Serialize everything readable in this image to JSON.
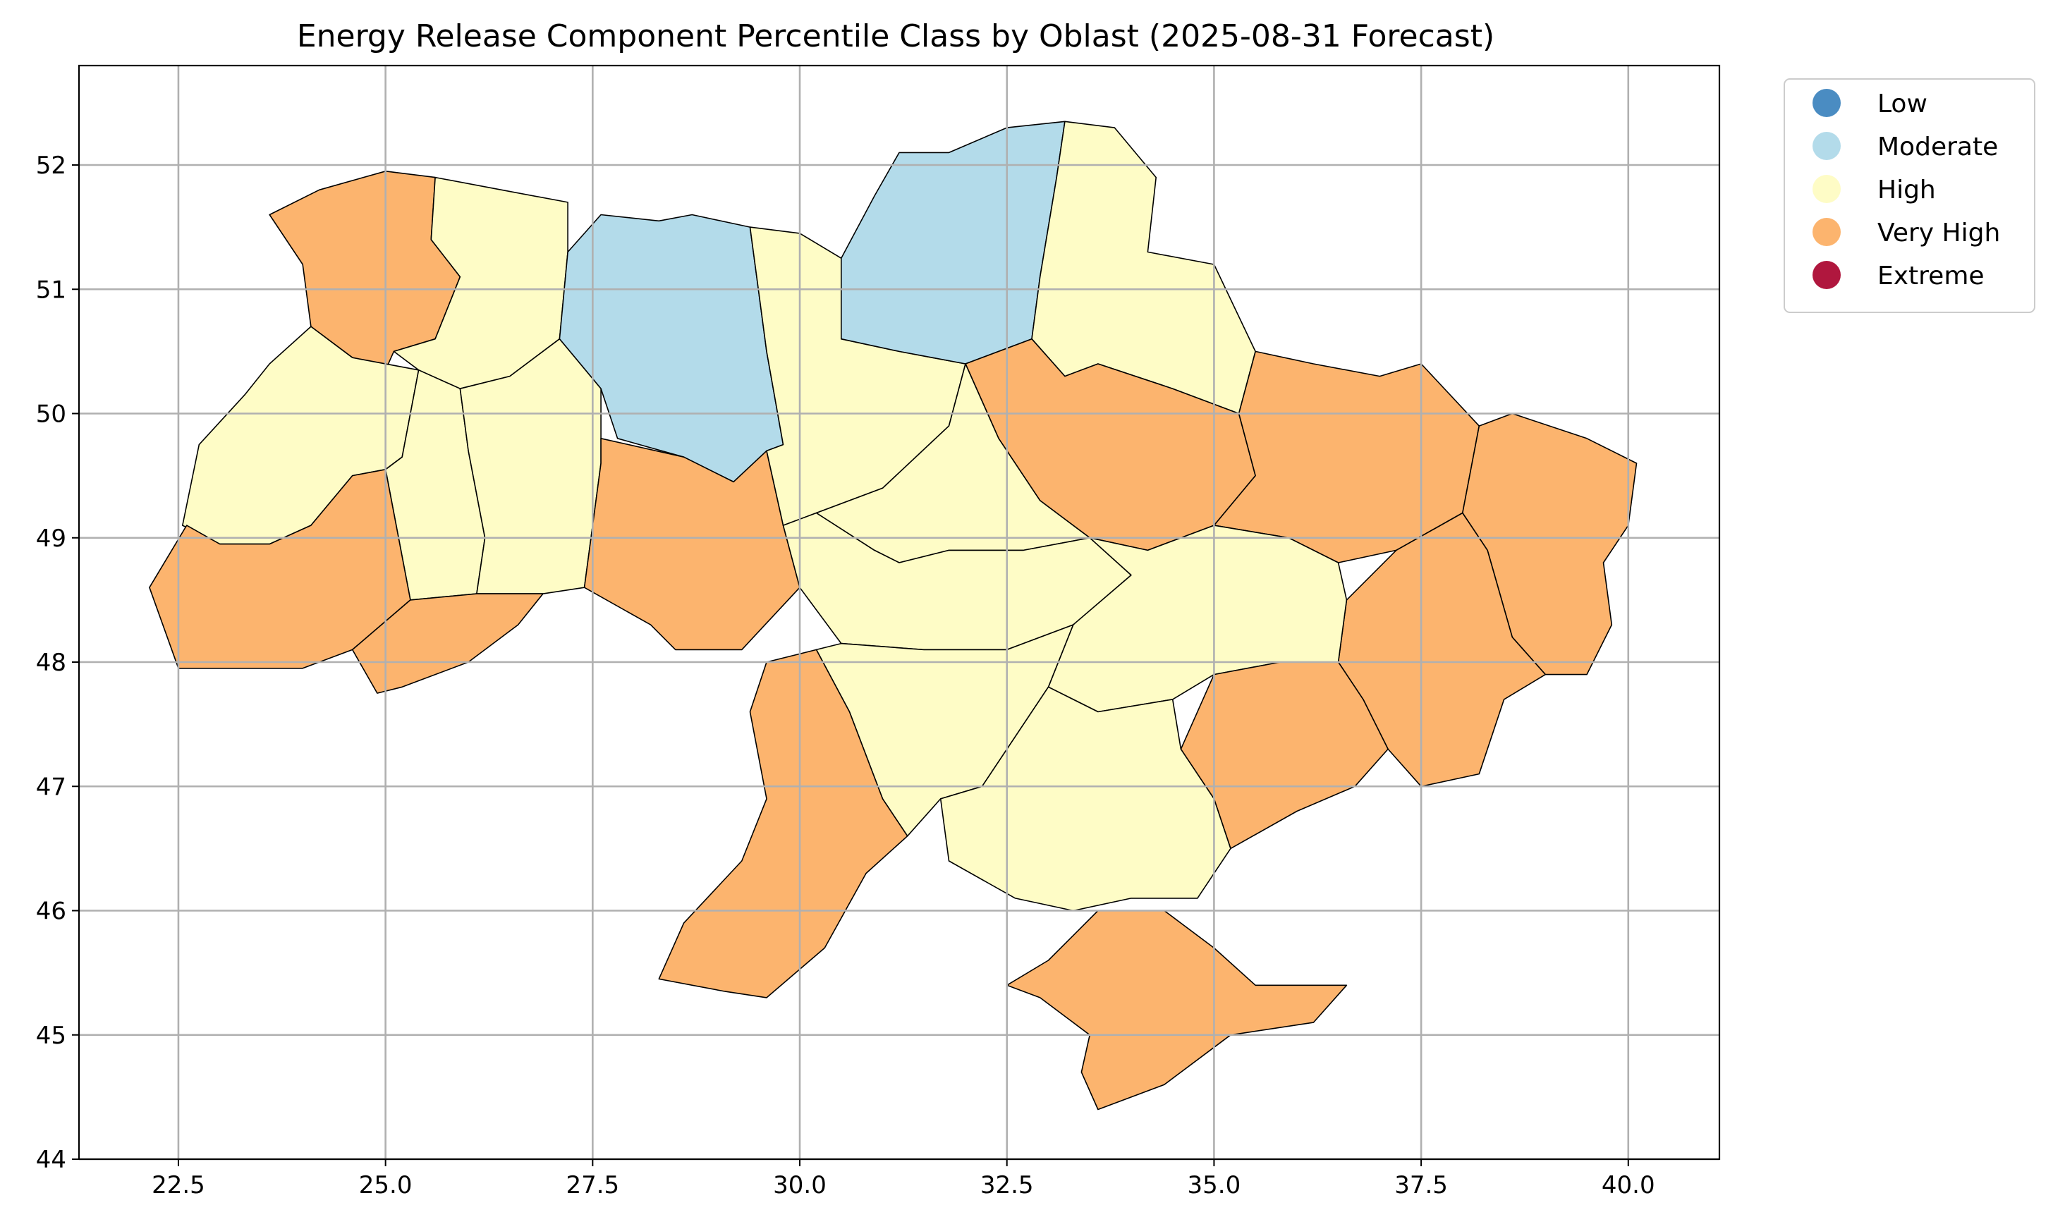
{
  "title": "Energy Release Component Percentile Class by Oblast (2025-08-31 Forecast)",
  "map": {
    "xlim": [
      21.3,
      41.1
    ],
    "ylim": [
      44.0,
      52.8
    ],
    "x_ticks": [
      {
        "value": 22.5,
        "label": "22.5"
      },
      {
        "value": 25.0,
        "label": "25.0"
      },
      {
        "value": 27.5,
        "label": "27.5"
      },
      {
        "value": 30.0,
        "label": "30.0"
      },
      {
        "value": 32.5,
        "label": "32.5"
      },
      {
        "value": 35.0,
        "label": "35.0"
      },
      {
        "value": 37.5,
        "label": "37.5"
      },
      {
        "value": 40.0,
        "label": "40.0"
      }
    ],
    "y_ticks": [
      {
        "value": 44,
        "label": "44"
      },
      {
        "value": 45,
        "label": "45"
      },
      {
        "value": 46,
        "label": "46"
      },
      {
        "value": 47,
        "label": "47"
      },
      {
        "value": 48,
        "label": "48"
      },
      {
        "value": 49,
        "label": "49"
      },
      {
        "value": 50,
        "label": "50"
      },
      {
        "value": 51,
        "label": "51"
      },
      {
        "value": 52,
        "label": "52"
      }
    ],
    "grid": true,
    "legend_position": "outside-right-top"
  },
  "legend": {
    "items": [
      {
        "label": "Low",
        "color": "#4a8cc2"
      },
      {
        "label": "Moderate",
        "color": "#b3dbea"
      },
      {
        "label": "High",
        "color": "#fefcc6"
      },
      {
        "label": "Very High",
        "color": "#fcb46e"
      },
      {
        "label": "Extreme",
        "color": "#b0173e"
      }
    ]
  },
  "class_colors": {
    "Low": "#4a8cc2",
    "Moderate": "#b3dbea",
    "High": "#fefcc6",
    "Very High": "#fcb46e",
    "Extreme": "#b0173e"
  },
  "oblasts": [
    {
      "class": "Very High",
      "lonlat": [
        [
          23.6,
          51.6
        ],
        [
          24.2,
          51.8
        ],
        [
          25.0,
          51.95
        ],
        [
          25.6,
          51.9
        ],
        [
          25.55,
          51.4
        ],
        [
          25.9,
          51.1
        ],
        [
          25.6,
          50.6
        ],
        [
          25.1,
          50.5
        ],
        [
          25.0,
          50.35
        ],
        [
          24.6,
          50.45
        ],
        [
          24.1,
          50.7
        ],
        [
          24.0,
          51.2
        ],
        [
          23.6,
          51.6
        ]
      ]
    },
    {
      "class": "High",
      "lonlat": [
        [
          25.6,
          51.9
        ],
        [
          26.4,
          51.8
        ],
        [
          27.2,
          51.7
        ],
        [
          27.2,
          51.3
        ],
        [
          27.1,
          50.6
        ],
        [
          26.5,
          50.3
        ],
        [
          25.9,
          50.2
        ],
        [
          25.4,
          50.35
        ],
        [
          25.1,
          50.5
        ],
        [
          25.6,
          50.6
        ],
        [
          25.9,
          51.1
        ],
        [
          25.55,
          51.4
        ],
        [
          25.6,
          51.9
        ]
      ]
    },
    {
      "class": "Moderate",
      "lonlat": [
        [
          27.2,
          51.3
        ],
        [
          27.6,
          51.6
        ],
        [
          28.3,
          51.55
        ],
        [
          28.7,
          51.6
        ],
        [
          29.4,
          51.5
        ],
        [
          29.5,
          51.0
        ],
        [
          29.6,
          50.5
        ],
        [
          29.8,
          49.75
        ],
        [
          29.6,
          49.7
        ],
        [
          29.2,
          49.45
        ],
        [
          28.6,
          49.65
        ],
        [
          27.8,
          49.8
        ],
        [
          27.6,
          50.2
        ],
        [
          27.1,
          50.6
        ],
        [
          27.2,
          51.3
        ]
      ]
    },
    {
      "class": "High",
      "lonlat": [
        [
          23.6,
          50.4
        ],
        [
          23.3,
          50.15
        ],
        [
          22.75,
          49.75
        ],
        [
          22.55,
          49.1
        ],
        [
          23.0,
          48.95
        ],
        [
          23.6,
          48.95
        ],
        [
          24.1,
          49.1
        ],
        [
          24.6,
          49.5
        ],
        [
          25.0,
          49.55
        ],
        [
          25.2,
          49.65
        ],
        [
          25.4,
          50.35
        ],
        [
          24.6,
          50.45
        ],
        [
          24.1,
          50.7
        ],
        [
          23.6,
          50.4
        ]
      ]
    },
    {
      "class": "High",
      "lonlat": [
        [
          25.4,
          50.35
        ],
        [
          25.9,
          50.2
        ],
        [
          26.0,
          49.7
        ],
        [
          26.2,
          49.0
        ],
        [
          26.1,
          48.55
        ],
        [
          25.3,
          48.5
        ],
        [
          25.0,
          49.55
        ],
        [
          25.2,
          49.65
        ],
        [
          25.4,
          50.35
        ]
      ]
    },
    {
      "class": "High",
      "lonlat": [
        [
          25.9,
          50.2
        ],
        [
          26.5,
          50.3
        ],
        [
          27.1,
          50.6
        ],
        [
          27.6,
          50.2
        ],
        [
          27.6,
          49.6
        ],
        [
          27.4,
          48.6
        ],
        [
          26.9,
          48.55
        ],
        [
          26.1,
          48.55
        ],
        [
          26.2,
          49.0
        ],
        [
          26.0,
          49.7
        ],
        [
          25.9,
          50.2
        ]
      ]
    },
    {
      "class": "Very High",
      "lonlat": [
        [
          22.15,
          48.6
        ],
        [
          22.6,
          49.1
        ],
        [
          23.0,
          48.95
        ],
        [
          23.6,
          48.95
        ],
        [
          24.1,
          49.1
        ],
        [
          24.6,
          49.5
        ],
        [
          25.0,
          49.55
        ],
        [
          25.3,
          48.5
        ],
        [
          24.6,
          48.1
        ],
        [
          24.0,
          47.95
        ],
        [
          23.2,
          47.95
        ],
        [
          22.5,
          47.95
        ],
        [
          22.15,
          48.6
        ]
      ]
    },
    {
      "class": "Very High",
      "lonlat": [
        [
          24.6,
          48.1
        ],
        [
          25.3,
          48.5
        ],
        [
          26.1,
          48.55
        ],
        [
          26.9,
          48.55
        ],
        [
          26.6,
          48.3
        ],
        [
          26.0,
          48.0
        ],
        [
          25.2,
          47.8
        ],
        [
          24.9,
          47.75
        ],
        [
          24.6,
          48.1
        ]
      ]
    },
    {
      "class": "Very High",
      "lonlat": [
        [
          27.6,
          49.8
        ],
        [
          28.6,
          49.65
        ],
        [
          29.2,
          49.45
        ],
        [
          29.6,
          49.7
        ],
        [
          29.8,
          49.1
        ],
        [
          30.0,
          48.6
        ],
        [
          29.3,
          48.1
        ],
        [
          28.5,
          48.1
        ],
        [
          28.2,
          48.3
        ],
        [
          27.4,
          48.6
        ],
        [
          27.6,
          49.6
        ],
        [
          27.6,
          49.8
        ]
      ]
    },
    {
      "class": "High",
      "lonlat": [
        [
          29.4,
          51.5
        ],
        [
          30.0,
          51.45
        ],
        [
          30.5,
          51.25
        ],
        [
          30.5,
          50.6
        ],
        [
          31.2,
          50.5
        ],
        [
          31.6,
          50.45
        ],
        [
          32.0,
          50.4
        ],
        [
          31.8,
          49.9
        ],
        [
          31.0,
          49.4
        ],
        [
          30.2,
          49.2
        ],
        [
          29.8,
          49.1
        ],
        [
          29.6,
          49.7
        ],
        [
          29.8,
          49.75
        ],
        [
          29.6,
          50.5
        ],
        [
          29.5,
          51.0
        ],
        [
          29.4,
          51.5
        ]
      ]
    },
    {
      "class": "Moderate",
      "lonlat": [
        [
          30.5,
          51.25
        ],
        [
          30.9,
          51.75
        ],
        [
          31.2,
          52.1
        ],
        [
          31.8,
          52.1
        ],
        [
          32.5,
          52.3
        ],
        [
          33.2,
          52.35
        ],
        [
          33.1,
          51.9
        ],
        [
          32.9,
          51.1
        ],
        [
          32.8,
          50.6
        ],
        [
          32.0,
          50.4
        ],
        [
          31.6,
          50.45
        ],
        [
          31.2,
          50.5
        ],
        [
          30.5,
          50.6
        ],
        [
          30.5,
          51.25
        ]
      ]
    },
    {
      "class": "High",
      "lonlat": [
        [
          33.2,
          52.35
        ],
        [
          33.8,
          52.3
        ],
        [
          34.3,
          51.9
        ],
        [
          34.2,
          51.3
        ],
        [
          35.0,
          51.2
        ],
        [
          35.5,
          50.5
        ],
        [
          35.3,
          50.0
        ],
        [
          34.5,
          50.2
        ],
        [
          33.6,
          50.4
        ],
        [
          33.2,
          50.3
        ],
        [
          32.8,
          50.6
        ],
        [
          32.9,
          51.1
        ],
        [
          33.1,
          51.9
        ],
        [
          33.2,
          52.35
        ]
      ]
    },
    {
      "class": "Very High",
      "lonlat": [
        [
          32.0,
          50.4
        ],
        [
          32.8,
          50.6
        ],
        [
          33.2,
          50.3
        ],
        [
          33.6,
          50.4
        ],
        [
          34.5,
          50.2
        ],
        [
          35.3,
          50.0
        ],
        [
          35.5,
          49.5
        ],
        [
          35.0,
          49.1
        ],
        [
          34.2,
          48.9
        ],
        [
          33.5,
          49.0
        ],
        [
          32.9,
          49.3
        ],
        [
          32.4,
          49.8
        ],
        [
          32.0,
          50.4
        ]
      ]
    },
    {
      "class": "Very High",
      "lonlat": [
        [
          35.3,
          50.0
        ],
        [
          35.5,
          50.5
        ],
        [
          36.2,
          50.4
        ],
        [
          37.0,
          50.3
        ],
        [
          37.5,
          50.4
        ],
        [
          38.2,
          49.9
        ],
        [
          38.0,
          49.2
        ],
        [
          37.2,
          48.9
        ],
        [
          36.5,
          48.8
        ],
        [
          35.9,
          49.0
        ],
        [
          35.0,
          49.1
        ],
        [
          35.5,
          49.5
        ],
        [
          35.3,
          50.0
        ]
      ]
    },
    {
      "class": "Very High",
      "lonlat": [
        [
          38.2,
          49.9
        ],
        [
          38.6,
          50.0
        ],
        [
          39.5,
          49.8
        ],
        [
          40.1,
          49.6
        ],
        [
          40.0,
          49.1
        ],
        [
          39.7,
          48.8
        ],
        [
          39.8,
          48.3
        ],
        [
          39.5,
          47.9
        ],
        [
          39.0,
          47.9
        ],
        [
          38.6,
          48.2
        ],
        [
          38.3,
          48.9
        ],
        [
          38.0,
          49.2
        ],
        [
          38.2,
          49.9
        ]
      ]
    },
    {
      "class": "Very High",
      "lonlat": [
        [
          37.2,
          48.9
        ],
        [
          38.0,
          49.2
        ],
        [
          38.3,
          48.9
        ],
        [
          38.6,
          48.2
        ],
        [
          39.0,
          47.9
        ],
        [
          38.5,
          47.7
        ],
        [
          38.2,
          47.1
        ],
        [
          37.5,
          47.0
        ],
        [
          37.1,
          47.3
        ],
        [
          36.8,
          47.7
        ],
        [
          36.5,
          48.0
        ],
        [
          36.6,
          48.5
        ],
        [
          37.2,
          48.9
        ]
      ]
    },
    {
      "class": "High",
      "lonlat": [
        [
          31.0,
          49.4
        ],
        [
          31.8,
          49.9
        ],
        [
          32.0,
          50.4
        ],
        [
          32.4,
          49.8
        ],
        [
          32.9,
          49.3
        ],
        [
          33.5,
          49.0
        ],
        [
          32.7,
          48.9
        ],
        [
          31.8,
          48.9
        ],
        [
          31.2,
          48.8
        ],
        [
          30.9,
          48.9
        ],
        [
          30.2,
          49.2
        ],
        [
          31.0,
          49.4
        ]
      ]
    },
    {
      "class": "High",
      "lonlat": [
        [
          29.8,
          49.1
        ],
        [
          30.2,
          49.2
        ],
        [
          30.9,
          48.9
        ],
        [
          31.2,
          48.8
        ],
        [
          31.8,
          48.9
        ],
        [
          32.7,
          48.9
        ],
        [
          33.5,
          49.0
        ],
        [
          34.0,
          48.7
        ],
        [
          33.3,
          48.3
        ],
        [
          32.5,
          48.1
        ],
        [
          31.5,
          48.1
        ],
        [
          30.5,
          48.15
        ],
        [
          30.0,
          48.6
        ],
        [
          29.8,
          49.1
        ]
      ]
    },
    {
      "class": "High",
      "lonlat": [
        [
          33.5,
          49.0
        ],
        [
          34.2,
          48.9
        ],
        [
          35.0,
          49.1
        ],
        [
          35.9,
          49.0
        ],
        [
          36.5,
          48.8
        ],
        [
          36.6,
          48.5
        ],
        [
          36.5,
          48.0
        ],
        [
          35.8,
          48.0
        ],
        [
          35.0,
          47.9
        ],
        [
          34.5,
          47.7
        ],
        [
          33.6,
          47.6
        ],
        [
          33.0,
          47.8
        ],
        [
          33.3,
          48.3
        ],
        [
          34.0,
          48.7
        ],
        [
          33.5,
          49.0
        ]
      ]
    },
    {
      "class": "Very High",
      "lonlat": [
        [
          35.0,
          47.9
        ],
        [
          35.8,
          48.0
        ],
        [
          36.5,
          48.0
        ],
        [
          36.8,
          47.7
        ],
        [
          37.1,
          47.3
        ],
        [
          36.7,
          47.0
        ],
        [
          36.0,
          46.8
        ],
        [
          35.2,
          46.5
        ],
        [
          35.0,
          46.9
        ],
        [
          34.6,
          47.3
        ],
        [
          35.0,
          47.9
        ]
      ]
    },
    {
      "class": "High",
      "lonlat": [
        [
          30.2,
          48.1
        ],
        [
          30.5,
          48.15
        ],
        [
          31.5,
          48.1
        ],
        [
          32.5,
          48.1
        ],
        [
          33.3,
          48.3
        ],
        [
          33.0,
          47.8
        ],
        [
          32.6,
          47.4
        ],
        [
          32.2,
          47.0
        ],
        [
          31.7,
          46.9
        ],
        [
          31.3,
          46.6
        ],
        [
          31.0,
          46.9
        ],
        [
          30.6,
          47.6
        ],
        [
          30.2,
          48.1
        ]
      ]
    },
    {
      "class": "High",
      "lonlat": [
        [
          32.2,
          47.0
        ],
        [
          32.6,
          47.4
        ],
        [
          33.0,
          47.8
        ],
        [
          33.6,
          47.6
        ],
        [
          34.5,
          47.7
        ],
        [
          34.6,
          47.3
        ],
        [
          35.0,
          46.9
        ],
        [
          35.2,
          46.5
        ],
        [
          34.8,
          46.1
        ],
        [
          34.0,
          46.1
        ],
        [
          33.3,
          46.0
        ],
        [
          32.6,
          46.1
        ],
        [
          31.8,
          46.4
        ],
        [
          31.7,
          46.9
        ],
        [
          32.2,
          47.0
        ]
      ]
    },
    {
      "class": "Very High",
      "lonlat": [
        [
          29.6,
          48.0
        ],
        [
          30.2,
          48.1
        ],
        [
          30.6,
          47.6
        ],
        [
          31.0,
          46.9
        ],
        [
          31.3,
          46.6
        ],
        [
          30.8,
          46.3
        ],
        [
          30.3,
          45.7
        ],
        [
          29.6,
          45.3
        ],
        [
          29.1,
          45.35
        ],
        [
          28.3,
          45.45
        ],
        [
          28.6,
          45.9
        ],
        [
          29.3,
          46.4
        ],
        [
          29.6,
          46.9
        ],
        [
          29.4,
          47.6
        ],
        [
          29.6,
          48.0
        ]
      ]
    },
    {
      "class": "Very High",
      "lonlat": [
        [
          32.5,
          45.4
        ],
        [
          33.0,
          45.6
        ],
        [
          33.6,
          46.0
        ],
        [
          34.4,
          46.0
        ],
        [
          35.0,
          45.7
        ],
        [
          35.5,
          45.4
        ],
        [
          36.6,
          45.4
        ],
        [
          36.2,
          45.1
        ],
        [
          35.2,
          45.0
        ],
        [
          34.4,
          44.6
        ],
        [
          33.6,
          44.4
        ],
        [
          33.4,
          44.7
        ],
        [
          33.5,
          45.0
        ],
        [
          32.9,
          45.3
        ],
        [
          32.5,
          45.4
        ]
      ]
    }
  ]
}
